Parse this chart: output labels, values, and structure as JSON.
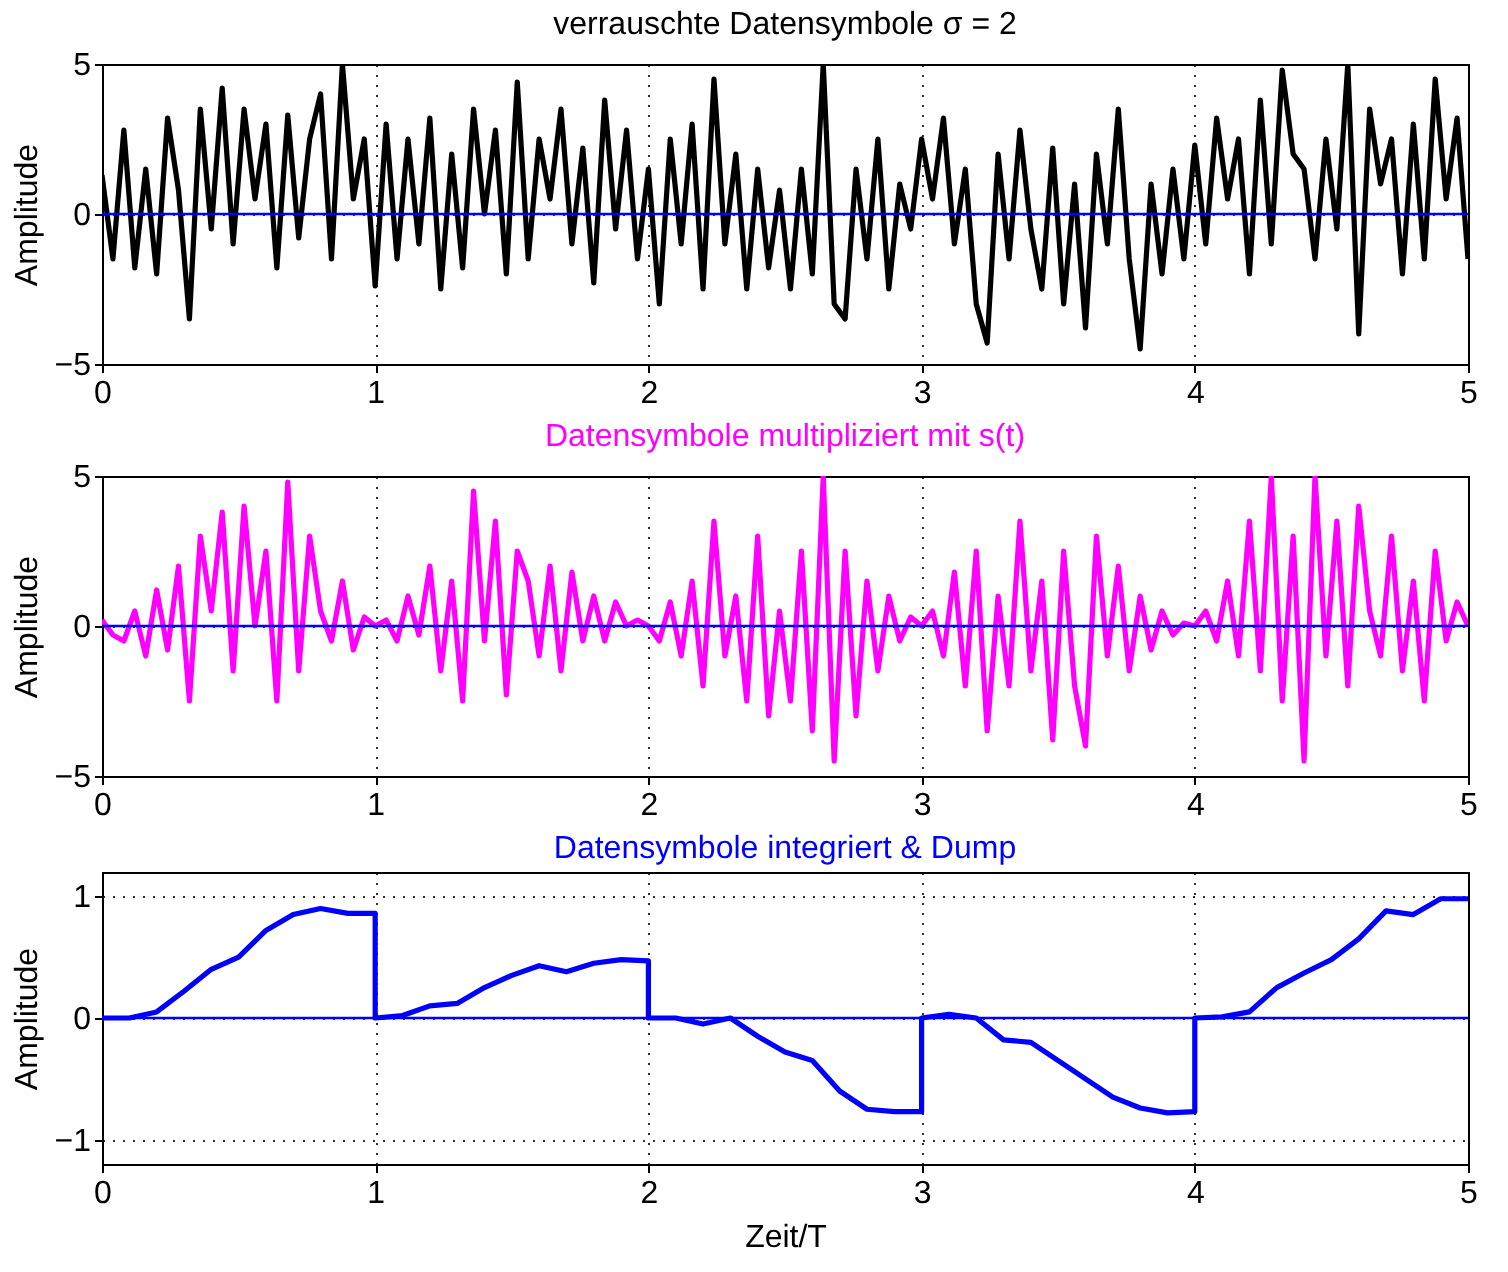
{
  "chart_data": [
    {
      "type": "line",
      "title": "verrauschte Datensymbole σ = 2",
      "ylabel": "Amplitude",
      "xlim": [
        0,
        5
      ],
      "xticks": [
        0,
        1,
        2,
        3,
        4,
        5
      ],
      "ylim": [
        -5,
        5
      ],
      "yticks": [
        -5,
        0,
        5
      ],
      "grid": true,
      "x": [
        0,
        0.04,
        0.08,
        0.12,
        0.16,
        0.2,
        0.24,
        0.28,
        0.32,
        0.36,
        0.4,
        0.44,
        0.48,
        0.52,
        0.56,
        0.6,
        0.64,
        0.68,
        0.72,
        0.76,
        0.8,
        0.84,
        0.88,
        0.92,
        0.96,
        1,
        1.04,
        1.08,
        1.12,
        1.16,
        1.2,
        1.24,
        1.28,
        1.32,
        1.36,
        1.4,
        1.44,
        1.48,
        1.52,
        1.56,
        1.6,
        1.64,
        1.68,
        1.72,
        1.76,
        1.8,
        1.84,
        1.88,
        1.92,
        1.96,
        2,
        2.04,
        2.08,
        2.12,
        2.16,
        2.2,
        2.24,
        2.28,
        2.32,
        2.36,
        2.4,
        2.44,
        2.48,
        2.52,
        2.56,
        2.6,
        2.64,
        2.68,
        2.72,
        2.76,
        2.8,
        2.84,
        2.88,
        2.92,
        2.96,
        3,
        3.04,
        3.08,
        3.12,
        3.16,
        3.2,
        3.24,
        3.28,
        3.32,
        3.36,
        3.4,
        3.44,
        3.48,
        3.52,
        3.56,
        3.6,
        3.64,
        3.68,
        3.72,
        3.76,
        3.8,
        3.84,
        3.88,
        3.92,
        3.96,
        4,
        4.04,
        4.08,
        4.12,
        4.16,
        4.2,
        4.24,
        4.28,
        4.32,
        4.36,
        4.4,
        4.44,
        4.48,
        4.52,
        4.56,
        4.6,
        4.64,
        4.68,
        4.72,
        4.76,
        4.8,
        4.84,
        4.88,
        4.92,
        4.96,
        5
      ],
      "series": [
        {
          "color": "#000000",
          "values": [
            1.3,
            -1.5,
            2.8,
            -1.8,
            1.5,
            -2,
            3.2,
            0.8,
            -3.5,
            3.5,
            -0.5,
            4.2,
            -1,
            3.5,
            0.5,
            3.0,
            -1.8,
            3.3,
            -0.8,
            2.5,
            4.0,
            -1.5,
            5,
            0.5,
            2.5,
            -2.4,
            3,
            -1.5,
            2.5,
            -1,
            3.2,
            -2.5,
            2,
            -1.8,
            3.5,
            0,
            2.8,
            -2,
            4.4,
            -1.5,
            2.5,
            0.5,
            3.5,
            -1,
            2.2,
            -2.3,
            3.8,
            -0.5,
            2.8,
            -1.5,
            1.5,
            -3,
            2.5,
            -1,
            3,
            -2.5,
            4.5,
            -1,
            2,
            -2.5,
            1.5,
            -1.8,
            0.8,
            -2.5,
            1.5,
            -2,
            5,
            -3,
            -3.5,
            1.5,
            -1.5,
            2.5,
            -2.5,
            1.0,
            -0.5,
            2.5,
            0.5,
            3.2,
            -1,
            1.5,
            -3,
            -4.3,
            2,
            -1.5,
            2.8,
            -0.5,
            -2.5,
            2.2,
            -3,
            1,
            -3.8,
            2,
            -1,
            3.5,
            -1.5,
            -4.5,
            1,
            -2,
            1.5,
            -1.5,
            2.3,
            -1,
            3.2,
            0.5,
            2.5,
            -2,
            3.8,
            -1,
            4.8,
            2,
            1.5,
            -1.5,
            2.5,
            -0.5,
            5,
            -4,
            3.5,
            1,
            2.5,
            -2,
            3,
            -1.5,
            4.5,
            0.5,
            3.2,
            -1.5
          ]
        }
      ],
      "ref_lines": [
        {
          "axis": "y",
          "value": 0,
          "color": "#0000ff"
        }
      ]
    },
    {
      "type": "line",
      "title": "Datensymbole multipliziert mit s(t)",
      "ylabel": "Amplitude",
      "xlim": [
        0,
        5
      ],
      "xticks": [
        0,
        1,
        2,
        3,
        4,
        5
      ],
      "ylim": [
        -5,
        5
      ],
      "yticks": [
        -5,
        0,
        5
      ],
      "grid": true,
      "x": [
        0,
        0.04,
        0.08,
        0.12,
        0.16,
        0.2,
        0.24,
        0.28,
        0.32,
        0.36,
        0.4,
        0.44,
        0.48,
        0.52,
        0.56,
        0.6,
        0.64,
        0.68,
        0.72,
        0.76,
        0.8,
        0.84,
        0.88,
        0.92,
        0.96,
        1,
        1.04,
        1.08,
        1.12,
        1.16,
        1.2,
        1.24,
        1.28,
        1.32,
        1.36,
        1.4,
        1.44,
        1.48,
        1.52,
        1.56,
        1.6,
        1.64,
        1.68,
        1.72,
        1.76,
        1.8,
        1.84,
        1.88,
        1.92,
        1.96,
        2,
        2.04,
        2.08,
        2.12,
        2.16,
        2.2,
        2.24,
        2.28,
        2.32,
        2.36,
        2.4,
        2.44,
        2.48,
        2.52,
        2.56,
        2.6,
        2.64,
        2.68,
        2.72,
        2.76,
        2.8,
        2.84,
        2.88,
        2.92,
        2.96,
        3,
        3.04,
        3.08,
        3.12,
        3.16,
        3.2,
        3.24,
        3.28,
        3.32,
        3.36,
        3.4,
        3.44,
        3.48,
        3.52,
        3.56,
        3.6,
        3.64,
        3.68,
        3.72,
        3.76,
        3.8,
        3.84,
        3.88,
        3.92,
        3.96,
        4,
        4.04,
        4.08,
        4.12,
        4.16,
        4.2,
        4.24,
        4.28,
        4.32,
        4.36,
        4.4,
        4.44,
        4.48,
        4.52,
        4.56,
        4.6,
        4.64,
        4.68,
        4.72,
        4.76,
        4.8,
        4.84,
        4.88,
        4.92,
        4.96,
        5
      ],
      "series": [
        {
          "color": "#ff00ff",
          "values": [
            0.2,
            -0.3,
            -0.5,
            0.5,
            -1,
            1.2,
            -0.8,
            2,
            -2.5,
            3,
            0.5,
            3.8,
            -1.5,
            4,
            0,
            2.5,
            -2.5,
            4.8,
            -1.5,
            3,
            0.5,
            -0.5,
            1.5,
            -0.8,
            0.3,
            0,
            0.2,
            -0.5,
            1,
            -0.3,
            2,
            -1.5,
            1.5,
            -2.5,
            4.5,
            -0.5,
            3.5,
            -2.3,
            2.5,
            1.5,
            -1,
            2,
            -1.5,
            1.8,
            -0.5,
            1,
            -0.5,
            0.8,
            0,
            0.2,
            0,
            -0.5,
            0.8,
            -1,
            1.5,
            -2,
            3.5,
            -1,
            1,
            -2.5,
            3,
            -3,
            0.5,
            -2.5,
            2.5,
            -3.5,
            5,
            -4.5,
            2.5,
            -3,
            1.5,
            -1.5,
            1,
            -0.5,
            0.3,
            0,
            0.5,
            -1,
            1.8,
            -2,
            2.5,
            -3.5,
            1,
            -2,
            3.5,
            -1.5,
            1.5,
            -3.8,
            2.5,
            -2,
            -4,
            3,
            -1,
            2,
            -1.5,
            1,
            -0.8,
            0.5,
            -0.3,
            0.1,
            0,
            0.5,
            -0.5,
            1.5,
            -1,
            3.5,
            -1.5,
            5,
            -2.5,
            3,
            -4.5,
            5,
            -1,
            3.5,
            -2,
            4,
            0.5,
            -1,
            3,
            -1.5,
            1.5,
            -2.5,
            2.5,
            -0.5,
            0.8,
            0
          ]
        }
      ],
      "ref_lines": [
        {
          "axis": "y",
          "value": 0,
          "color": "#0000ff"
        }
      ]
    },
    {
      "type": "line",
      "title": "Datensymbole integriert & Dump",
      "xlabel": "Zeit/T",
      "ylabel": "Amplitude",
      "xlim": [
        0,
        5
      ],
      "xticks": [
        0,
        1,
        2,
        3,
        4,
        5
      ],
      "ylim": [
        -1.2,
        1.2
      ],
      "yticks": [
        -1,
        0,
        1
      ],
      "grid": true,
      "x": [
        0,
        0.1,
        0.2,
        0.3,
        0.4,
        0.5,
        0.6,
        0.7,
        0.8,
        0.9,
        1,
        1,
        1.1,
        1.2,
        1.3,
        1.4,
        1.5,
        1.6,
        1.7,
        1.8,
        1.9,
        2,
        2,
        2.1,
        2.2,
        2.3,
        2.4,
        2.5,
        2.6,
        2.7,
        2.8,
        2.9,
        3,
        3,
        3.1,
        3.2,
        3.3,
        3.4,
        3.5,
        3.6,
        3.7,
        3.8,
        3.9,
        4,
        4,
        4.1,
        4.2,
        4.3,
        4.4,
        4.5,
        4.6,
        4.7,
        4.8,
        4.9,
        5
      ],
      "series": [
        {
          "color": "#0000ff",
          "values": [
            0,
            0,
            0.05,
            0.22,
            0.4,
            0.5,
            0.72,
            0.85,
            0.9,
            0.86,
            0.86,
            0,
            0.02,
            0.1,
            0.12,
            0.25,
            0.35,
            0.43,
            0.38,
            0.45,
            0.48,
            0.47,
            0,
            0,
            -0.05,
            0,
            -0.15,
            -0.28,
            -0.35,
            -0.6,
            -0.75,
            -0.77,
            -0.77,
            0,
            0.03,
            0,
            -0.18,
            -0.2,
            -0.35,
            -0.5,
            -0.65,
            -0.74,
            -0.78,
            -0.77,
            0,
            0.01,
            0.05,
            0.25,
            0.37,
            0.48,
            0.65,
            0.88,
            0.85,
            0.98,
            0.98
          ]
        }
      ],
      "ref_lines": [
        {
          "axis": "y",
          "value": 0,
          "color": "#0000ff"
        }
      ]
    }
  ]
}
